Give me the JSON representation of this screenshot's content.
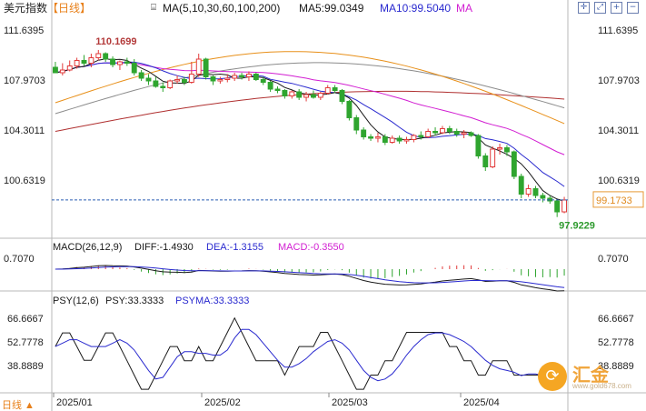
{
  "header": {
    "title": "美元指数",
    "period": "【日线】",
    "ma_params": "MA(5,10,30,60,100,200)",
    "ma5": "MA5:99.0349",
    "ma10": "MA10:99.5040",
    "ma_more": "MA",
    "colors": {
      "title": "#222222",
      "period": "#e8801a",
      "ma5": "#1a1a1a",
      "ma10": "#2a2acf",
      "ma_more": "#d21ed2"
    }
  },
  "toolbar": {
    "icons": [
      "crosshair-icon",
      "expand-icon",
      "zoom-in-icon",
      "zoom-out-icon"
    ]
  },
  "bottom_label": "日线 ▲",
  "watermark": {
    "text": "汇金",
    "url": "www.gold678.com"
  },
  "chart_data": [
    {
      "type": "candlestick",
      "title": "美元指数 日线",
      "yticks": [
        "111.6395",
        "107.9703",
        "104.3011",
        "100.6319"
      ],
      "ylim": [
        96.5,
        112.5
      ],
      "xticks": [
        "2025/01",
        "2025/02",
        "2025/03",
        "2025/04"
      ],
      "annotations": {
        "high": "110.1699",
        "low": "97.9229",
        "last": "99.1733"
      },
      "colors": {
        "up": "#e23b3b",
        "down": "#2fa52f",
        "ma5": "#1a1a1a",
        "ma10": "#2a2acf",
        "ma30": "#d21ed2",
        "ma60": "#e8901a",
        "ma100": "#8c8c8c",
        "ma200": "#b03030"
      },
      "ohlc": [
        [
          108.9,
          109.3,
          108.5,
          108.5
        ],
        [
          108.5,
          109.2,
          108.3,
          108.7
        ],
        [
          108.7,
          109.4,
          108.6,
          109.0
        ],
        [
          109.0,
          109.6,
          108.8,
          109.4
        ],
        [
          109.4,
          109.8,
          109.0,
          109.2
        ],
        [
          109.2,
          109.9,
          108.9,
          109.6
        ],
        [
          109.6,
          110.17,
          109.4,
          109.9
        ],
        [
          109.9,
          110.0,
          109.3,
          109.5
        ],
        [
          109.5,
          109.7,
          108.9,
          109.1
        ],
        [
          109.1,
          109.4,
          108.7,
          109.3
        ],
        [
          109.3,
          109.6,
          109.0,
          109.2
        ],
        [
          109.2,
          109.5,
          108.3,
          108.5
        ],
        [
          108.5,
          108.7,
          107.9,
          108.1
        ],
        [
          108.1,
          108.4,
          107.6,
          107.9
        ],
        [
          107.9,
          108.2,
          107.4,
          107.5
        ],
        [
          107.5,
          107.8,
          107.1,
          107.4
        ],
        [
          107.4,
          108.0,
          107.3,
          107.9
        ],
        [
          107.9,
          108.3,
          107.7,
          108.0
        ],
        [
          108.0,
          108.2,
          107.6,
          107.8
        ],
        [
          107.8,
          109.3,
          107.7,
          108.4
        ],
        [
          108.4,
          109.9,
          108.2,
          109.5
        ],
        [
          109.5,
          109.6,
          108.0,
          108.2
        ],
        [
          108.2,
          108.3,
          107.6,
          107.9
        ],
        [
          107.9,
          108.2,
          107.7,
          108.0
        ],
        [
          108.0,
          108.4,
          107.8,
          108.1
        ],
        [
          108.1,
          108.5,
          107.9,
          108.3
        ],
        [
          108.3,
          108.5,
          108.0,
          108.2
        ],
        [
          108.2,
          108.6,
          107.9,
          108.4
        ],
        [
          108.4,
          108.5,
          107.9,
          108.0
        ],
        [
          108.0,
          108.2,
          107.6,
          107.8
        ],
        [
          107.8,
          107.9,
          107.1,
          107.3
        ],
        [
          107.3,
          107.5,
          107.0,
          107.2
        ],
        [
          107.2,
          107.3,
          106.6,
          106.8
        ],
        [
          106.8,
          107.2,
          106.6,
          107.1
        ],
        [
          107.1,
          107.3,
          106.5,
          106.7
        ],
        [
          106.7,
          107.1,
          106.4,
          106.9
        ],
        [
          106.9,
          107.2,
          106.6,
          106.7
        ],
        [
          106.7,
          107.1,
          106.5,
          107.0
        ],
        [
          107.0,
          107.6,
          106.9,
          107.4
        ],
        [
          107.4,
          107.6,
          107.0,
          107.2
        ],
        [
          107.2,
          107.3,
          106.2,
          106.4
        ],
        [
          106.4,
          106.5,
          105.0,
          105.2
        ],
        [
          105.2,
          105.4,
          104.0,
          104.3
        ],
        [
          104.3,
          104.5,
          103.6,
          103.8
        ],
        [
          103.8,
          104.0,
          103.5,
          103.7
        ],
        [
          103.7,
          104.1,
          103.4,
          103.8
        ],
        [
          103.8,
          104.0,
          103.2,
          103.4
        ],
        [
          103.4,
          103.9,
          103.3,
          103.7
        ],
        [
          103.7,
          103.9,
          103.3,
          103.5
        ],
        [
          103.5,
          103.8,
          103.3,
          103.6
        ],
        [
          103.6,
          104.0,
          103.4,
          103.9
        ],
        [
          103.9,
          104.2,
          103.6,
          103.8
        ],
        [
          103.8,
          104.4,
          103.7,
          104.2
        ],
        [
          104.2,
          104.5,
          103.9,
          104.1
        ],
        [
          104.1,
          104.6,
          104.0,
          104.4
        ],
        [
          104.4,
          104.6,
          104.0,
          104.2
        ],
        [
          104.2,
          104.4,
          103.8,
          104.0
        ],
        [
          104.0,
          104.3,
          103.7,
          104.1
        ],
        [
          104.1,
          104.2,
          103.8,
          103.9
        ],
        [
          103.9,
          104.0,
          102.2,
          102.4
        ],
        [
          102.4,
          102.6,
          101.3,
          101.6
        ],
        [
          101.6,
          103.1,
          101.5,
          102.9
        ],
        [
          102.9,
          103.3,
          102.5,
          103.0
        ],
        [
          103.0,
          103.2,
          102.4,
          102.7
        ],
        [
          102.7,
          102.8,
          100.7,
          100.9
        ],
        [
          100.9,
          101.1,
          99.3,
          99.6
        ],
        [
          99.6,
          100.3,
          99.4,
          100.0
        ],
        [
          100.0,
          100.2,
          99.3,
          99.5
        ],
        [
          99.5,
          99.7,
          99.0,
          99.3
        ],
        [
          99.3,
          99.5,
          98.9,
          99.1
        ],
        [
          99.1,
          99.2,
          97.92,
          98.3
        ],
        [
          98.3,
          99.4,
          98.2,
          99.17
        ]
      ]
    },
    {
      "type": "macd",
      "title": "MACD(26,12,9)",
      "params": "MACD(26,12,9)",
      "diff_label": "DIFF:-1.4930",
      "dea_label": "DEA:-1.3155",
      "macd_label": "MACD:-0.3550",
      "yticks": [
        "0.7070"
      ],
      "colors": {
        "diff": "#1a1a1a",
        "dea": "#2a2acf",
        "label_macd": "#d21ed2",
        "up": "#e23b3b",
        "down": "#2fa52f"
      }
    },
    {
      "type": "line",
      "title": "PSY(12,6)",
      "params": "PSY(12,6)",
      "psy_label": "PSY:33.3333",
      "psyma_label": "PSYMA:33.3333",
      "yticks": [
        "66.6667",
        "52.7778",
        "38.8889"
      ],
      "ylim": [
        24,
        74
      ],
      "colors": {
        "psy": "#1a1a1a",
        "psyma": "#2a2acf"
      },
      "series": [
        {
          "name": "PSY",
          "values": [
            50,
            58,
            58,
            50,
            42,
            42,
            50,
            58,
            58,
            50,
            41.7,
            33.3,
            25,
            25,
            33.3,
            41.7,
            50,
            50,
            41.7,
            41.7,
            50,
            41.7,
            41.7,
            50,
            58.3,
            66.7,
            58.3,
            50,
            41.7,
            41.7,
            41.7,
            41.7,
            33.3,
            41.7,
            50,
            50,
            50,
            58.3,
            58.3,
            50,
            41.7,
            33.3,
            25,
            25,
            33.3,
            33.3,
            41.7,
            41.7,
            50,
            58.3,
            58.3,
            58.3,
            58.3,
            58.3,
            58.3,
            50,
            50,
            41.7,
            41.7,
            33.3,
            33.3,
            41.7,
            41.7,
            41.7,
            33.3,
            33.3,
            33.3,
            33.3,
            33.3,
            33.3,
            33.3,
            33.3
          ]
        },
        {
          "name": "PSYMA",
          "values": [
            50,
            52,
            54,
            54,
            52,
            50,
            50,
            50,
            52,
            54,
            52,
            48,
            42,
            36,
            31,
            32,
            38,
            44,
            47,
            47,
            46,
            46,
            45,
            45,
            48,
            55,
            60,
            60,
            57,
            52,
            47,
            42,
            38,
            38,
            40,
            43,
            47,
            50,
            53,
            54,
            52,
            48,
            42,
            36,
            32,
            30,
            31,
            34,
            39,
            45,
            50,
            54,
            57,
            58,
            58,
            57,
            55,
            53,
            50,
            46,
            42,
            39,
            37,
            36,
            35,
            33,
            34,
            34,
            33,
            33,
            33,
            33.3
          ]
        }
      ]
    }
  ]
}
